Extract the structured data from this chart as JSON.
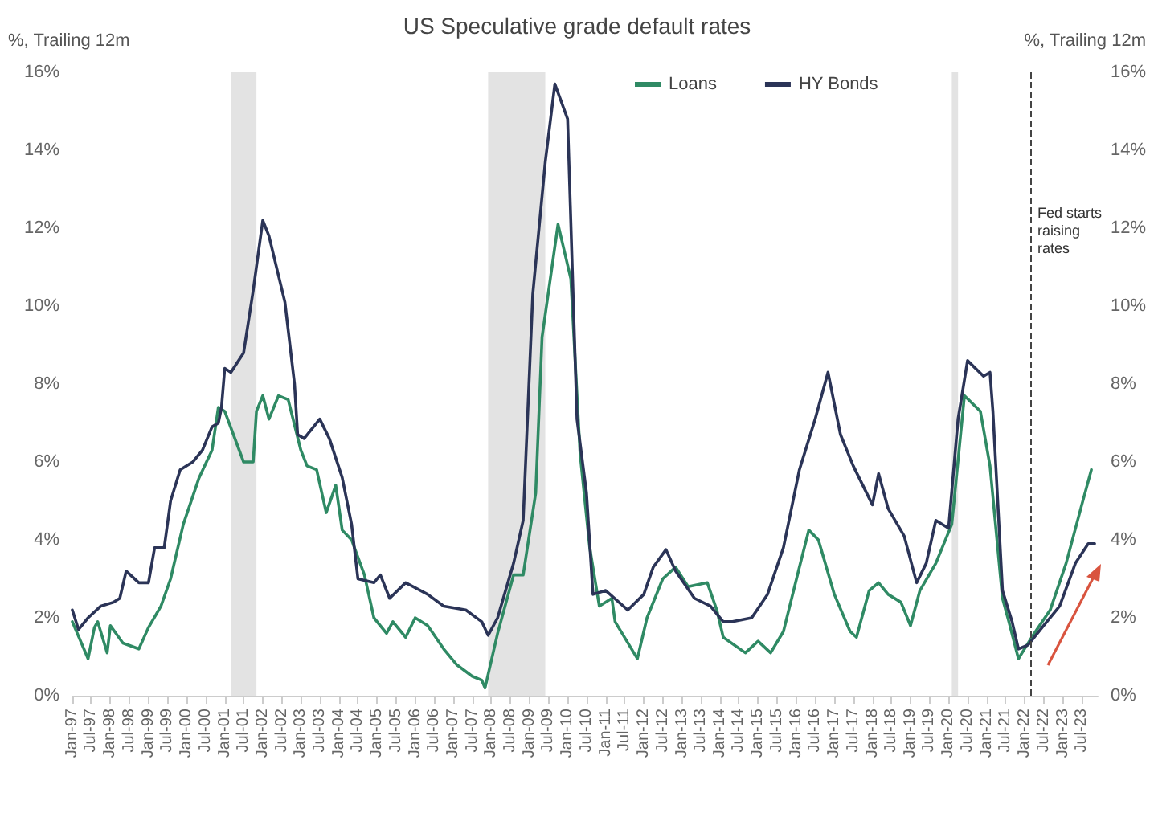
{
  "chart_data": {
    "type": "line",
    "title": "US Speculative grade default rates",
    "ylabel": "%, Trailing 12m",
    "y2label": "%, Trailing 12m",
    "legend": "top",
    "grid": false,
    "marker": "none",
    "line_style": "solid",
    "xlim": [
      "1997-01",
      "2023-12"
    ],
    "xticks": [
      {
        "value": "1997-01",
        "label": "Jan-97"
      },
      {
        "value": "1997-07",
        "label": "Jul-97"
      },
      {
        "value": "1998-01",
        "label": "Jan-98"
      },
      {
        "value": "1998-07",
        "label": "Jul-98"
      },
      {
        "value": "1999-01",
        "label": "Jan-99"
      },
      {
        "value": "1999-07",
        "label": "Jul-99"
      },
      {
        "value": "2000-01",
        "label": "Jan-00"
      },
      {
        "value": "2000-07",
        "label": "Jul-00"
      },
      {
        "value": "2001-01",
        "label": "Jan-01"
      },
      {
        "value": "2001-07",
        "label": "Jul-01"
      },
      {
        "value": "2002-01",
        "label": "Jan-02"
      },
      {
        "value": "2002-07",
        "label": "Jul-02"
      },
      {
        "value": "2003-01",
        "label": "Jan-03"
      },
      {
        "value": "2003-07",
        "label": "Jul-03"
      },
      {
        "value": "2004-01",
        "label": "Jan-04"
      },
      {
        "value": "2004-07",
        "label": "Jul-04"
      },
      {
        "value": "2005-01",
        "label": "Jan-05"
      },
      {
        "value": "2005-07",
        "label": "Jul-05"
      },
      {
        "value": "2006-01",
        "label": "Jan-06"
      },
      {
        "value": "2006-07",
        "label": "Jul-06"
      },
      {
        "value": "2007-01",
        "label": "Jan-07"
      },
      {
        "value": "2007-07",
        "label": "Jul-07"
      },
      {
        "value": "2008-01",
        "label": "Jan-08"
      },
      {
        "value": "2008-07",
        "label": "Jul-08"
      },
      {
        "value": "2009-01",
        "label": "Jan-09"
      },
      {
        "value": "2009-07",
        "label": "Jul-09"
      },
      {
        "value": "2010-01",
        "label": "Jan-10"
      },
      {
        "value": "2010-07",
        "label": "Jul-10"
      },
      {
        "value": "2011-01",
        "label": "Jan-11"
      },
      {
        "value": "2011-07",
        "label": "Jul-11"
      },
      {
        "value": "2012-01",
        "label": "Jan-12"
      },
      {
        "value": "2012-07",
        "label": "Jul-12"
      },
      {
        "value": "2013-01",
        "label": "Jan-13"
      },
      {
        "value": "2013-07",
        "label": "Jul-13"
      },
      {
        "value": "2014-01",
        "label": "Jan-14"
      },
      {
        "value": "2014-07",
        "label": "Jul-14"
      },
      {
        "value": "2015-01",
        "label": "Jan-15"
      },
      {
        "value": "2015-07",
        "label": "Jul-15"
      },
      {
        "value": "2016-01",
        "label": "Jan-16"
      },
      {
        "value": "2016-07",
        "label": "Jul-16"
      },
      {
        "value": "2017-01",
        "label": "Jan-17"
      },
      {
        "value": "2017-07",
        "label": "Jul-17"
      },
      {
        "value": "2018-01",
        "label": "Jan-18"
      },
      {
        "value": "2018-07",
        "label": "Jul-18"
      },
      {
        "value": "2019-01",
        "label": "Jan-19"
      },
      {
        "value": "2019-07",
        "label": "Jul-19"
      },
      {
        "value": "2020-01",
        "label": "Jan-20"
      },
      {
        "value": "2020-07",
        "label": "Jul-20"
      },
      {
        "value": "2021-01",
        "label": "Jan-21"
      },
      {
        "value": "2021-07",
        "label": "Jul-21"
      },
      {
        "value": "2022-01",
        "label": "Jan-22"
      },
      {
        "value": "2022-07",
        "label": "Jul-22"
      },
      {
        "value": "2023-01",
        "label": "Jan-23"
      },
      {
        "value": "2023-07",
        "label": "Jul-23"
      }
    ],
    "ylim": [
      0,
      16
    ],
    "yticks": [
      {
        "value": 0,
        "label": "0%"
      },
      {
        "value": 2,
        "label": "2%"
      },
      {
        "value": 4,
        "label": "4%"
      },
      {
        "value": 6,
        "label": "6%"
      },
      {
        "value": 8,
        "label": "8%"
      },
      {
        "value": 10,
        "label": "10%"
      },
      {
        "value": 12,
        "label": "12%"
      },
      {
        "value": 14,
        "label": "14%"
      },
      {
        "value": 16,
        "label": "16%"
      }
    ],
    "y2lim": [
      0,
      16
    ],
    "y2ticks": [
      {
        "value": 0,
        "label": "0%"
      },
      {
        "value": 2,
        "label": "2%"
      },
      {
        "value": 4,
        "label": "4%"
      },
      {
        "value": 6,
        "label": "6%"
      },
      {
        "value": 8,
        "label": "8%"
      },
      {
        "value": 10,
        "label": "10%"
      },
      {
        "value": 12,
        "label": "12%"
      },
      {
        "value": 14,
        "label": "14%"
      },
      {
        "value": 16,
        "label": "16%"
      }
    ],
    "bands": [
      {
        "axis": "x",
        "from": "2001-03",
        "to": "2001-11",
        "color": "#e3e3e3"
      },
      {
        "axis": "x",
        "from": "2007-12",
        "to": "2009-06",
        "color": "#e3e3e3"
      },
      {
        "axis": "x",
        "from": "2020-02",
        "to": "2020-04",
        "color": "#e3e3e3"
      }
    ],
    "ref_lines": [
      {
        "axis": "x",
        "value": "2022-03",
        "label": "Fed starts raising rates",
        "color": "#444444",
        "line_style": "dashed"
      }
    ],
    "series": [
      {
        "name": "Loans",
        "color": "#2f8a64",
        "x": [
          "1997-01",
          "1997-06",
          "1997-08",
          "1997-09",
          "1997-12",
          "1998-01",
          "1998-05",
          "1998-10",
          "1999-01",
          "1999-05",
          "1999-08",
          "1999-12",
          "2000-05",
          "2000-09",
          "2000-11",
          "2001-01",
          "2001-07",
          "2001-10",
          "2001-11",
          "2002-01",
          "2002-03",
          "2002-06",
          "2002-09",
          "2003-01",
          "2003-03",
          "2003-06",
          "2003-09",
          "2003-12",
          "2004-02",
          "2004-05",
          "2004-09",
          "2004-12",
          "2005-04",
          "2005-06",
          "2005-10",
          "2006-01",
          "2006-05",
          "2006-10",
          "2007-02",
          "2007-07",
          "2007-10",
          "2007-11",
          "2008-03",
          "2008-08",
          "2008-11",
          "2009-03",
          "2009-05",
          "2009-10",
          "2010-02",
          "2010-05",
          "2010-08",
          "2010-11",
          "2011-03",
          "2011-04",
          "2011-11",
          "2012-02",
          "2012-07",
          "2012-11",
          "2013-03",
          "2013-09",
          "2013-12",
          "2014-02",
          "2014-09",
          "2015-01",
          "2015-05",
          "2015-09",
          "2016-02",
          "2016-05",
          "2016-08",
          "2017-01",
          "2017-06",
          "2017-08",
          "2017-12",
          "2018-03",
          "2018-06",
          "2018-10",
          "2019-01",
          "2019-04",
          "2019-09",
          "2020-02",
          "2020-06",
          "2020-11",
          "2021-02",
          "2021-06",
          "2021-08",
          "2021-11",
          "2022-04",
          "2022-09",
          "2023-02",
          "2023-07",
          "2023-10"
        ],
        "values": [
          1.9,
          0.95,
          1.75,
          1.9,
          1.1,
          1.8,
          1.35,
          1.2,
          1.75,
          2.3,
          3.0,
          4.4,
          5.6,
          6.3,
          7.4,
          7.3,
          6.0,
          6.0,
          7.3,
          7.7,
          7.1,
          7.7,
          7.6,
          6.3,
          5.9,
          5.8,
          4.7,
          5.4,
          4.25,
          4.0,
          3.1,
          2.0,
          1.6,
          1.9,
          1.5,
          2.0,
          1.8,
          1.2,
          0.8,
          0.5,
          0.4,
          0.2,
          1.6,
          3.1,
          3.1,
          5.2,
          9.2,
          12.1,
          10.7,
          6.2,
          3.8,
          2.3,
          2.5,
          1.9,
          0.95,
          2.0,
          3.0,
          3.3,
          2.8,
          2.9,
          2.2,
          1.5,
          1.1,
          1.4,
          1.1,
          1.65,
          3.3,
          4.25,
          4.0,
          2.6,
          1.65,
          1.5,
          2.7,
          2.9,
          2.6,
          2.4,
          1.8,
          2.7,
          3.4,
          4.4,
          7.7,
          7.3,
          5.9,
          2.5,
          1.9,
          0.95,
          1.6,
          2.2,
          3.4,
          4.9,
          5.8
        ]
      },
      {
        "name": "HY Bonds",
        "color": "#2b3457",
        "x": [
          "1997-01",
          "1997-03",
          "1997-06",
          "1997-10",
          "1998-02",
          "1998-04",
          "1998-06",
          "1998-10",
          "1999-01",
          "1999-03",
          "1999-06",
          "1999-08",
          "1999-11",
          "2000-03",
          "2000-06",
          "2000-09",
          "2000-11",
          "2000-12",
          "2001-01",
          "2001-03",
          "2001-07",
          "2001-10",
          "2002-01",
          "2002-03",
          "2002-08",
          "2002-11",
          "2002-12",
          "2003-02",
          "2003-07",
          "2003-10",
          "2004-02",
          "2004-05",
          "2004-07",
          "2004-12",
          "2005-02",
          "2005-05",
          "2005-10",
          "2006-05",
          "2006-10",
          "2007-05",
          "2007-10",
          "2007-12",
          "2008-03",
          "2008-08",
          "2008-11",
          "2009-02",
          "2009-06",
          "2009-09",
          "2010-01",
          "2010-04",
          "2010-07",
          "2010-09",
          "2011-01",
          "2011-08",
          "2012-01",
          "2012-04",
          "2012-08",
          "2012-11",
          "2013-05",
          "2013-10",
          "2014-02",
          "2014-05",
          "2014-11",
          "2015-04",
          "2015-09",
          "2016-02",
          "2016-07",
          "2016-11",
          "2017-03",
          "2017-07",
          "2017-10",
          "2018-01",
          "2018-03",
          "2018-06",
          "2018-11",
          "2019-03",
          "2019-06",
          "2019-09",
          "2020-01",
          "2020-04",
          "2020-07",
          "2020-12",
          "2021-02",
          "2021-03",
          "2021-06",
          "2021-09",
          "2021-11",
          "2022-02",
          "2022-07",
          "2022-12",
          "2023-05",
          "2023-09",
          "2023-11"
        ],
        "values": [
          2.2,
          1.7,
          2.0,
          2.3,
          2.4,
          2.5,
          3.2,
          2.9,
          2.9,
          3.8,
          3.8,
          5.0,
          5.8,
          6.0,
          6.3,
          6.9,
          7.0,
          7.4,
          8.4,
          8.3,
          8.8,
          10.4,
          12.2,
          11.8,
          10.1,
          8.0,
          6.7,
          6.6,
          7.1,
          6.6,
          5.6,
          4.4,
          3.0,
          2.9,
          3.1,
          2.5,
          2.9,
          2.6,
          2.3,
          2.2,
          1.9,
          1.55,
          2.0,
          3.4,
          4.5,
          10.3,
          13.7,
          15.7,
          14.8,
          7.1,
          5.2,
          2.6,
          2.7,
          2.2,
          2.6,
          3.3,
          3.75,
          3.2,
          2.5,
          2.3,
          1.9,
          1.9,
          2.0,
          2.6,
          3.8,
          5.8,
          7.1,
          8.3,
          6.7,
          5.9,
          5.4,
          4.9,
          5.7,
          4.8,
          4.1,
          2.9,
          3.4,
          4.5,
          4.3,
          7.1,
          8.6,
          8.2,
          8.3,
          7.3,
          2.7,
          1.9,
          1.2,
          1.3,
          1.8,
          2.3,
          3.4,
          3.9,
          3.9
        ]
      }
    ]
  }
}
